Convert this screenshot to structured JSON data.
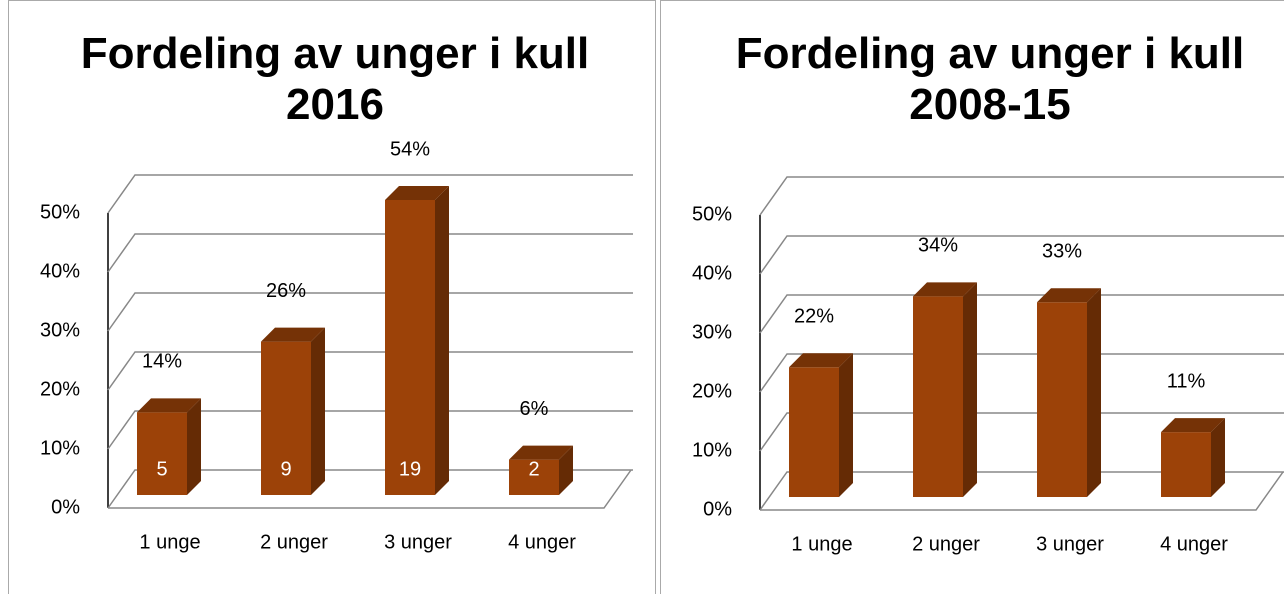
{
  "chart_data": [
    {
      "type": "bar3d",
      "title": "Fordeling av unger i kull 2016",
      "categories": [
        "1 unge",
        "2 unger",
        "3 unger",
        "4 unger"
      ],
      "values": [
        14,
        26,
        54,
        6
      ],
      "value_labels": [
        "14%",
        "26%",
        "54%",
        "6%"
      ],
      "counts": [
        5,
        9,
        19,
        2
      ],
      "color": "#9c4208",
      "ylim": [
        0,
        50
      ],
      "yticks": [
        {
          "value": 0,
          "label": "0%"
        },
        {
          "value": 10,
          "label": "10%"
        },
        {
          "value": 20,
          "label": "20%"
        },
        {
          "value": 30,
          "label": "30%"
        },
        {
          "value": 40,
          "label": "40%"
        },
        {
          "value": 50,
          "label": "50%"
        }
      ],
      "grid": true
    },
    {
      "type": "bar3d",
      "title": "Fordeling av unger i kull 2008-15",
      "categories": [
        "1 unge",
        "2 unger",
        "3 unger",
        "4 unger"
      ],
      "values": [
        22,
        34,
        33,
        11
      ],
      "value_labels": [
        "22%",
        "34%",
        "33%",
        "11%"
      ],
      "color": "#9c4208",
      "ylim": [
        0,
        50
      ],
      "yticks": [
        {
          "value": 0,
          "label": "0%"
        },
        {
          "value": 10,
          "label": "10%"
        },
        {
          "value": 20,
          "label": "20%"
        },
        {
          "value": 30,
          "label": "30%"
        },
        {
          "value": 40,
          "label": "40%"
        },
        {
          "value": 50,
          "label": "50%"
        }
      ],
      "grid": true
    }
  ]
}
